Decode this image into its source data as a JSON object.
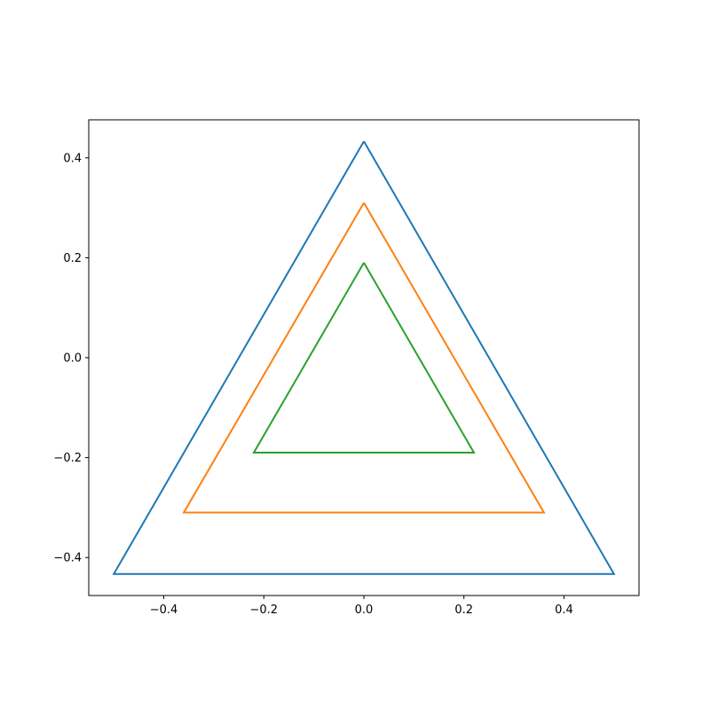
{
  "chart_data": {
    "type": "line",
    "series": [
      {
        "color": "#1f77b4",
        "x": [
          0,
          0.5,
          -0.5,
          0
        ],
        "values": [
          0.433,
          -0.433,
          -0.433,
          0.433
        ]
      },
      {
        "color": "#ff7f0e",
        "x": [
          0,
          0.36,
          -0.36,
          0
        ],
        "values": [
          0.31,
          -0.31,
          -0.31,
          0.31
        ]
      },
      {
        "color": "#2ca02c",
        "x": [
          0,
          0.22,
          -0.22,
          0
        ],
        "values": [
          0.19,
          -0.19,
          -0.19,
          0.19
        ]
      }
    ],
    "xlim": [
      -0.55,
      0.55
    ],
    "ylim": [
      -0.476,
      0.476
    ],
    "xticks": [
      {
        "value": -0.4,
        "label": "−0.4"
      },
      {
        "value": -0.2,
        "label": "−0.2"
      },
      {
        "value": 0,
        "label": "0.0"
      },
      0.2,
      0.4
    ],
    "yticks": [
      {
        "value": -0.4,
        "label": "−0.4"
      },
      {
        "value": -0.2,
        "label": "−0.2"
      },
      {
        "value": 0,
        "label": "0.0"
      },
      0.2,
      0.4
    ],
    "grid": false
  }
}
